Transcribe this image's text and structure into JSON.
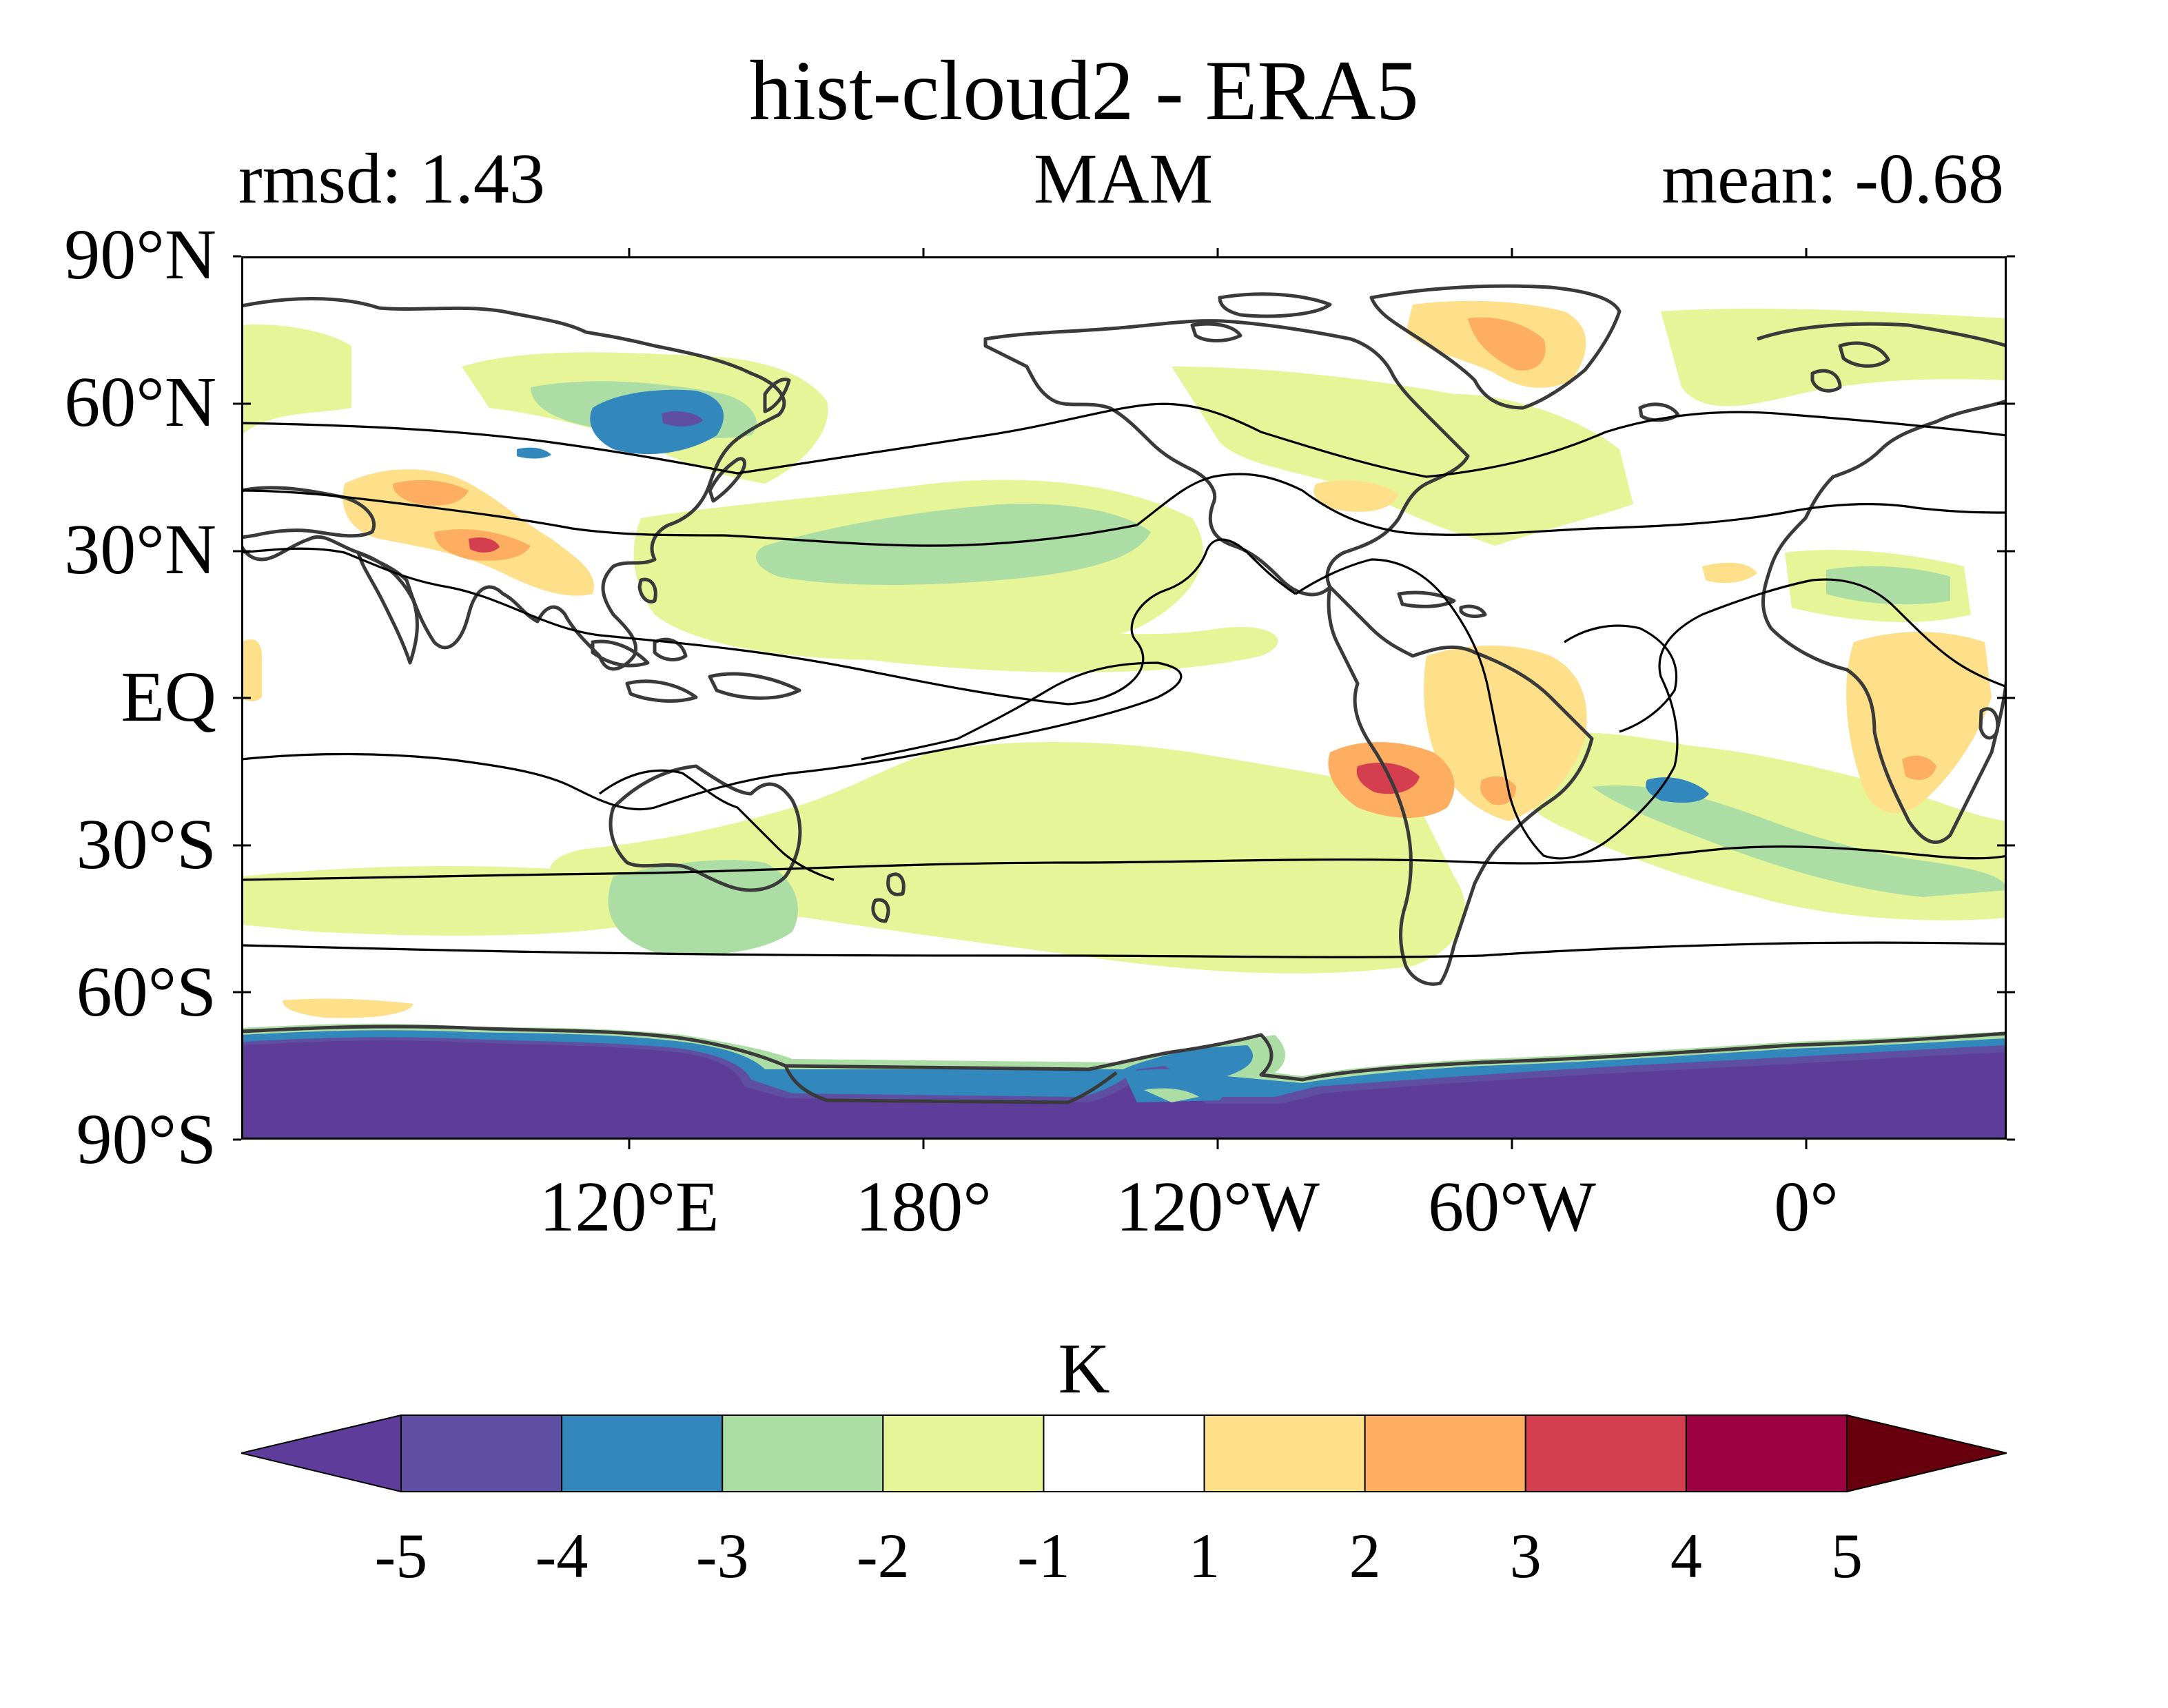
{
  "title": "hist-cloud2 - ERA5",
  "subtitle_left": "rmsd: 1.43",
  "subtitle_center": "MAM",
  "subtitle_right": "mean: -0.68",
  "lat_labels": [
    "90°N",
    "60°N",
    "30°N",
    "EQ",
    "30°S",
    "60°S",
    "90°S"
  ],
  "lon_labels": [
    "120°E",
    "180°",
    "120°W",
    "60°W",
    "0°"
  ],
  "colorbar": {
    "unit": "K",
    "ticks": [
      "-5",
      "-4",
      "-3",
      "-2",
      "-1",
      "1",
      "2",
      "3",
      "4",
      "5"
    ],
    "colors": [
      "#5e3c99",
      "#5e4fa2",
      "#3288bd",
      "#abdda4",
      "#e6f598",
      "#ffffff",
      "#fee08b",
      "#fdae61",
      "#d53e4f",
      "#9e0142",
      "#67000d"
    ]
  },
  "fill_colors": {
    "lt_m5": "#5e3c99",
    "m5_m4": "#5e4fa2",
    "m4_m3": "#3288bd",
    "m3_m2": "#abdda4",
    "m2_m1": "#e6f598",
    "p1_p2": "#fee08b",
    "p2_p3": "#fdae61",
    "p3_p4": "#d53e4f",
    "coast": "#3a3a3a"
  }
}
